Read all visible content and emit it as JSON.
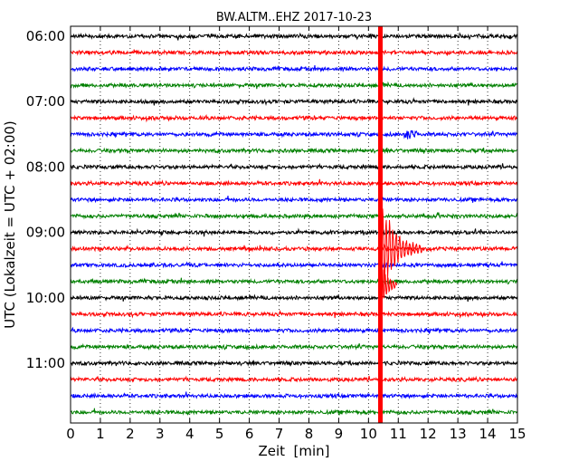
{
  "chart_data": {
    "type": "line",
    "title": "BW.ALTM..EHZ 2017-10-23",
    "xlabel": "Zeit  [min]",
    "ylabel": "UTC (Lokalzeit = UTC + 02:00)",
    "xlim": [
      0,
      15
    ],
    "x_ticks": [
      "0",
      "1",
      "2",
      "3",
      "4",
      "5",
      "6",
      "7",
      "8",
      "9",
      "10",
      "11",
      "12",
      "13",
      "14",
      "15"
    ],
    "y_ticks": [
      {
        "label": "06:00",
        "hour": 6
      },
      {
        "label": "07:00",
        "hour": 7
      },
      {
        "label": "08:00",
        "hour": 8
      },
      {
        "label": "09:00",
        "hour": 9
      },
      {
        "label": "10:00",
        "hour": 10
      },
      {
        "label": "11:00",
        "hour": 11
      }
    ],
    "grid": "vertical dotted at each minute",
    "trace_colors": [
      "#000000",
      "#ff0000",
      "#0000ff",
      "#008000"
    ],
    "traces_per_hour": 4,
    "minutes_per_trace": 15,
    "start_hour": 6,
    "trace_count": 24,
    "event": {
      "onset_minute": 10.4,
      "trace_start": "09:15",
      "color": "#ff0000",
      "saturated_from_trace_start": "06:00",
      "saturated_to_trace_start": "11:45"
    },
    "local_event": {
      "trace_start": "07:30",
      "minute": 11.4,
      "color": "#0000ff"
    }
  }
}
